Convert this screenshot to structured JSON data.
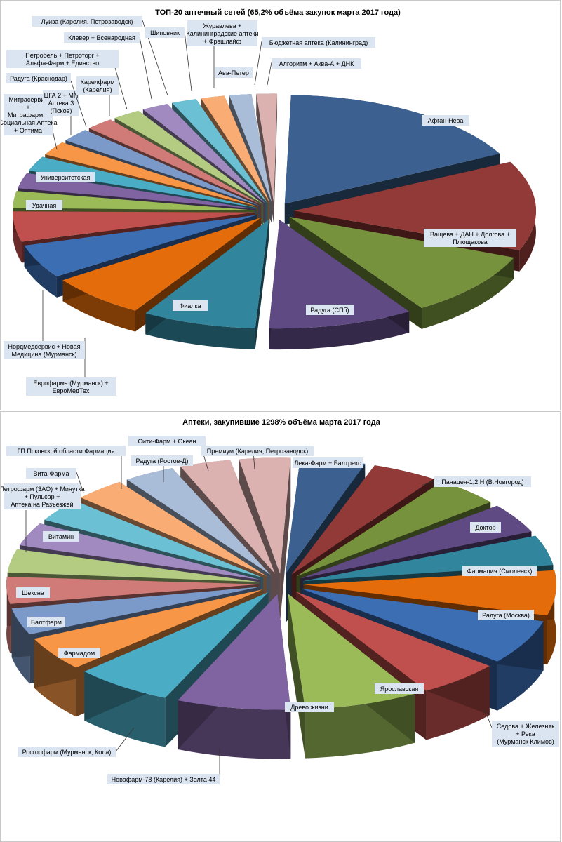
{
  "chart_data": [
    {
      "type": "pie",
      "title": "ТОП-20 аптечный сетей (65,2% объёма закупок марта 2017 года)",
      "slices": [
        {
          "label": "Афган-Нева",
          "value": 16.5,
          "color": "#3c6190"
        },
        {
          "label": "Ващева + ДАН + Долгова + Плющакова",
          "value": 13.0,
          "color": "#923a37"
        },
        {
          "label": "Радуга (СПб)",
          "value": 9.5,
          "color": "#76923c"
        },
        {
          "label": "Фиалка",
          "value": 9.5,
          "color": "#5f4a84"
        },
        {
          "label": "Еврофарма (Мурманск) + ЕвроМедТех",
          "value": 7.5,
          "color": "#31859c"
        },
        {
          "label": "Нордмедсервис + Новая Медицина (Мурманск)",
          "value": 6.5,
          "color": "#e46c0a"
        },
        {
          "label": "Удачная",
          "value": 5.0,
          "color": "#3c6eb4"
        },
        {
          "label": "Университетская",
          "value": 4.5,
          "color": "#c0504d"
        },
        {
          "label": "Митрасервис + Митрафарм + Социальная Аптека + Оптима (Карелия, Петрозаводск)",
          "value": 2.6,
          "color": "#9bbb59"
        },
        {
          "label": "ЦГА 2 + МП Аптека 3 (Псков)",
          "value": 2.4,
          "color": "#8064a2"
        },
        {
          "label": "Радуга (Краснодар)",
          "value": 2.3,
          "color": "#4bacc6"
        },
        {
          "label": "Карелфарм (Карелия)",
          "value": 2.2,
          "color": "#f79646"
        },
        {
          "label": "Петробель + Петроторг + Альфа-Фарм + Единство",
          "value": 2.1,
          "color": "#7b9ac9"
        },
        {
          "label": "Клевер + Всенародная",
          "value": 2.0,
          "color": "#d07b78"
        },
        {
          "label": "Луиза (Карелия, Петрозаводск)",
          "value": 2.0,
          "color": "#b3cc82"
        },
        {
          "label": "Шиповник",
          "value": 1.9,
          "color": "#a08ac0"
        },
        {
          "label": "Журавлева + Калининградские аптеки + Фрэшлайф",
          "value": 1.8,
          "color": "#6cc0d4"
        },
        {
          "label": "Ава-Петер",
          "value": 1.7,
          "color": "#f9ad74"
        },
        {
          "label": "Бюджетная аптека (Калининград)",
          "value": 1.6,
          "color": "#a9bcd8"
        },
        {
          "label": "Алгоритм + Аква-А + ДНК",
          "value": 1.5,
          "color": "#dcb2b1"
        }
      ]
    },
    {
      "type": "pie",
      "title": "Аптеки, закупившие 1298% объёма марта 2017 года",
      "slices": [
        {
          "label": "Лека-Фарм + Балтрекс",
          "value": 4.4,
          "color": "#3c6190"
        },
        {
          "label": "Панацея-1,2,Н (В.Новгород)",
          "value": 4.4,
          "color": "#923a37"
        },
        {
          "label": "Доктор",
          "value": 4.4,
          "color": "#76923c"
        },
        {
          "label": "Фармация (Смоленск)",
          "value": 4.4,
          "color": "#5f4a84"
        },
        {
          "label": "Радуга (Москва)",
          "value": 4.4,
          "color": "#31859c"
        },
        {
          "label": "Седова + Железняк + Река (Мурманск Климов)",
          "value": 6.5,
          "color": "#e46c0a"
        },
        {
          "label": "Ярославская",
          "value": 6.5,
          "color": "#3c6eb4"
        },
        {
          "label": "Древо жизни",
          "value": 5.5,
          "color": "#c0504d"
        },
        {
          "label": "Новафарм-78 (Карелия) + Золта 44",
          "value": 7.5,
          "color": "#9bbb59"
        },
        {
          "label": "Росгосфарм (Мурманск, Кола)",
          "value": 7.5,
          "color": "#8064a2"
        },
        {
          "label": "Фармадом",
          "value": 6.5,
          "color": "#4bacc6"
        },
        {
          "label": "Балтфарм",
          "value": 5.0,
          "color": "#f79646"
        },
        {
          "label": "Шексна",
          "value": 4.0,
          "color": "#7b9ac9"
        },
        {
          "label": "",
          "value": 4.0,
          "color": "#d07b78"
        },
        {
          "label": "Витамин",
          "value": 3.5,
          "color": "#b3cc82"
        },
        {
          "label": "Петрофарм (ЗАО) + Минутка + Пульсар + Аптека на Разъезжей",
          "value": 3.5,
          "color": "#a08ac0"
        },
        {
          "label": "Вита-Фарма",
          "value": 3.5,
          "color": "#6cc0d4"
        },
        {
          "label": "ГП Псковской области Фармация",
          "value": 3.5,
          "color": "#f9ad74"
        },
        {
          "label": "Радуга (Ростов-Д)",
          "value": 3.5,
          "color": "#a9bcd8"
        },
        {
          "label": "Сити-Фарм + Океан",
          "value": 3.5,
          "color": "#dcb2b1"
        },
        {
          "label": "Премиум (Карелия, Петрозаводск)",
          "value": 3.5,
          "color": "#dcb2b1"
        }
      ]
    }
  ],
  "labels_top": [
    {
      "text": "Афган-Нева"
    },
    {
      "text": "Ващева + ДАН + Долгова + Плющакова"
    },
    {
      "text": "Радуга (СПб)"
    },
    {
      "text": "Фиалка"
    },
    {
      "text": "Еврофарма (Мурманск) + ЕвроМедТех"
    },
    {
      "text": "Нордмедсервис + Новая Медицина (Мурманск)"
    },
    {
      "text": "Удачная"
    },
    {
      "text": "Университетская"
    },
    {
      "text": "Митрасервис + Митрафарм + Социальная Аптека + Оптима (Карелия, Петрозаводск)"
    },
    {
      "text": "ЦГА 2 + МП Аптека 3 (Псков)"
    },
    {
      "text": "Радуга (Краснодар)"
    },
    {
      "text": "Карелфарм (Карелия)"
    },
    {
      "text": "Петробель + Петроторг + Альфа-Фарм + Единство"
    },
    {
      "text": "Клевер + Всенародная"
    },
    {
      "text": "Луиза (Карелия, Петрозаводск)"
    },
    {
      "text": "Шиповник"
    },
    {
      "text": "Журавлева + Калининградские аптеки + Фрэшлайф"
    },
    {
      "text": "Ава-Петер"
    },
    {
      "text": "Бюджетная аптека (Калининград)"
    },
    {
      "text": "Алгоритм + Аква-А + ДНК"
    }
  ],
  "labels_bottom": [
    {
      "text": "Лека-Фарм + Балтрекс"
    },
    {
      "text": "Панацея-1,2,Н (В.Новгород)"
    },
    {
      "text": "Доктор"
    },
    {
      "text": "Фармация (Смоленск)"
    },
    {
      "text": "Радуга (Москва)"
    },
    {
      "text": "Седова + Железняк + Река (Мурманск Климов)"
    },
    {
      "text": "Ярославская"
    },
    {
      "text": "Древо жизни"
    },
    {
      "text": "Новафарм-78 (Карелия) + Золта 44"
    },
    {
      "text": "Росгосфарм (Мурманск, Кола)"
    },
    {
      "text": "Фармадом"
    },
    {
      "text": "Балтфарм"
    },
    {
      "text": "Шексна"
    },
    {
      "text": "Витамин"
    },
    {
      "text": "Петрофарм (ЗАО) + Минутка + Пульсар + Аптека на Разъезжей"
    },
    {
      "text": "Вита-Фарма"
    },
    {
      "text": "ГП Псковской области Фармация"
    },
    {
      "text": "Радуга (Ростов-Д)"
    },
    {
      "text": "Сити-Фарм + Океан"
    },
    {
      "text": "Премиум (Карелия, Петрозаводск)"
    }
  ]
}
